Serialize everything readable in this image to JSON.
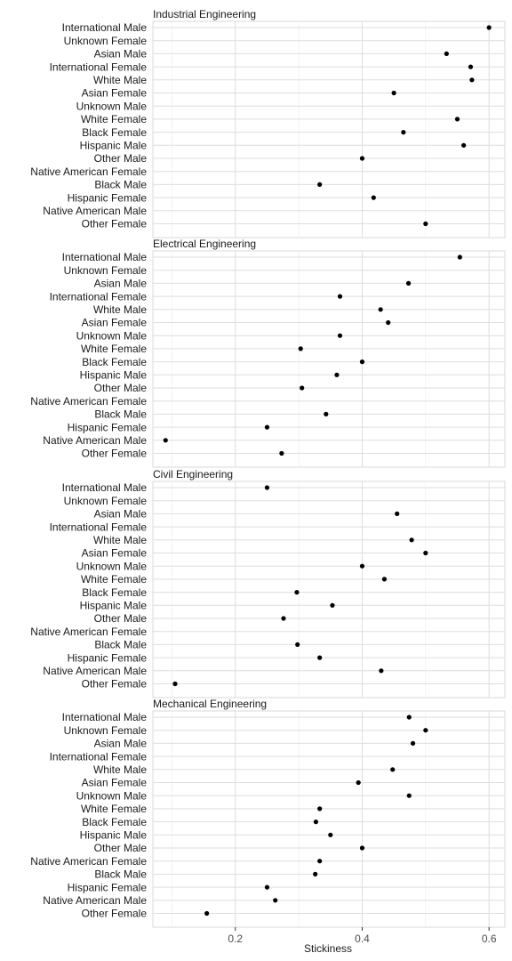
{
  "chart_data": {
    "type": "scatter",
    "xlabel": "Stickiness",
    "xlim": [
      0.07,
      0.625
    ],
    "xticks": [
      0.2,
      0.4,
      0.6
    ],
    "xtick_labels": [
      "0.2",
      "0.4",
      "0.6"
    ],
    "grid": true,
    "categories": [
      "International Male",
      "Unknown Female",
      "Asian Male",
      "International Female",
      "White Male",
      "Asian Female",
      "Unknown Male",
      "White Female",
      "Black Female",
      "Hispanic Male",
      "Other Male",
      "Native American Female",
      "Black Male",
      "Hispanic Female",
      "Native American Male",
      "Other Female"
    ],
    "panels": [
      {
        "title": "Industrial Engineering",
        "values": [
          0.6,
          null,
          0.533,
          0.571,
          0.573,
          0.45,
          null,
          0.55,
          0.465,
          0.56,
          0.4,
          null,
          0.333,
          0.418,
          null,
          0.5
        ]
      },
      {
        "title": "Electrical Engineering",
        "values": [
          0.554,
          null,
          0.473,
          0.365,
          0.429,
          0.441,
          0.365,
          0.303,
          0.4,
          0.36,
          0.305,
          null,
          0.343,
          0.25,
          0.09,
          0.273
        ]
      },
      {
        "title": "Civil Engineering",
        "values": [
          0.25,
          null,
          0.455,
          null,
          0.478,
          0.5,
          0.4,
          0.435,
          0.297,
          0.353,
          0.276,
          null,
          0.298,
          0.333,
          0.43,
          0.105
        ]
      },
      {
        "title": "Mechanical Engineering",
        "values": [
          0.474,
          0.5,
          0.48,
          null,
          0.448,
          0.394,
          0.474,
          0.333,
          0.327,
          0.35,
          0.4,
          0.333,
          0.326,
          0.25,
          0.263,
          0.155
        ]
      }
    ]
  }
}
